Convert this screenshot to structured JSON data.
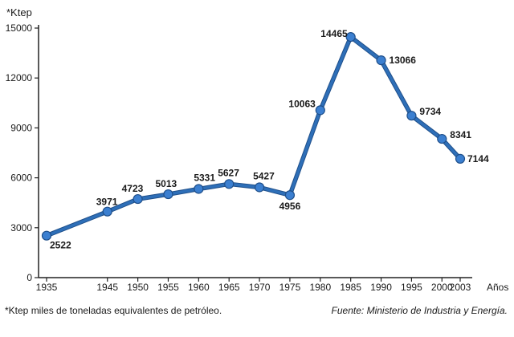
{
  "chart_data": {
    "type": "line",
    "title": "",
    "ylabel": "*Ktep",
    "xlabel": "Años",
    "x": [
      "1935",
      "1945",
      "1950",
      "1955",
      "1960",
      "1965",
      "1970",
      "1975",
      "1980",
      "1985",
      "1990",
      "1995",
      "2000",
      "2003"
    ],
    "series": [
      {
        "values": [
          2522,
          3971,
          4723,
          5013,
          5331,
          5627,
          5427,
          4956,
          10063,
          14465,
          13066,
          9734,
          8341,
          7144
        ]
      }
    ],
    "data_labels": [
      "2522",
      "3971",
      "4723",
      "5013",
      "5331",
      "5627",
      "5427",
      "4956",
      "10063",
      "14465",
      "13066",
      "9734",
      "8341",
      "7144"
    ],
    "ylim": [
      0,
      15000
    ],
    "yticks": [
      "0",
      "3000",
      "6000",
      "9000",
      "12000",
      "15000"
    ],
    "y_tick_values": [
      0,
      3000,
      6000,
      9000,
      12000,
      15000
    ],
    "xticks": [
      "1935",
      "1945",
      "1950",
      "1955",
      "1960",
      "1965",
      "1970",
      "1975",
      "1980",
      "1985",
      "1990",
      "1995",
      "2000",
      "2003"
    ],
    "grid": false,
    "legend": "none",
    "colors": {
      "line": "#2e6fb8",
      "marker": "#3b7fd0",
      "axis": "#222222"
    }
  },
  "footnote": "*Ktep  miles de toneladas equivalentes de petróleo.",
  "source": "Fuente: Ministerio de Industria y Energía."
}
